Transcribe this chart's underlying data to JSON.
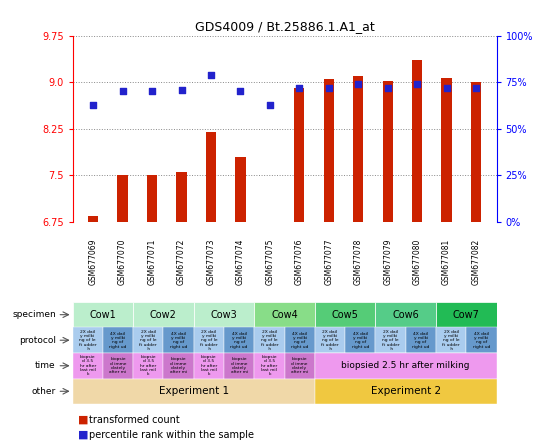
{
  "title": "GDS4009 / Bt.25886.1.A1_at",
  "samples": [
    "GSM677069",
    "GSM677070",
    "GSM677071",
    "GSM677072",
    "GSM677073",
    "GSM677074",
    "GSM677075",
    "GSM677076",
    "GSM677077",
    "GSM677078",
    "GSM677079",
    "GSM677080",
    "GSM677081",
    "GSM677082"
  ],
  "transformed_count": [
    6.85,
    7.5,
    7.5,
    7.55,
    8.2,
    7.8,
    6.7,
    8.9,
    9.05,
    9.1,
    9.02,
    9.35,
    9.07,
    9.0
  ],
  "percentile_rank": [
    63,
    70,
    70,
    71,
    79,
    70,
    63,
    72,
    72,
    74,
    72,
    74,
    72,
    72
  ],
  "ylim_left": [
    6.75,
    9.75
  ],
  "ylim_right": [
    0,
    100
  ],
  "yticks_left": [
    6.75,
    7.5,
    8.25,
    9.0,
    9.75
  ],
  "yticks_right": [
    0,
    25,
    50,
    75,
    100
  ],
  "ytick_labels_right": [
    "0%",
    "25%",
    "50%",
    "75%",
    "100%"
  ],
  "bar_color": "#cc2200",
  "dot_color": "#2222cc",
  "specimen_labels": [
    "Cow1",
    "Cow2",
    "Cow3",
    "Cow4",
    "Cow5",
    "Cow6",
    "Cow7"
  ],
  "specimen_spans": [
    [
      0,
      2
    ],
    [
      2,
      4
    ],
    [
      4,
      6
    ],
    [
      6,
      8
    ],
    [
      8,
      10
    ],
    [
      10,
      12
    ],
    [
      12,
      14
    ]
  ],
  "specimen_colors": [
    "#bbeecc",
    "#bbeecc",
    "#bbeecc",
    "#88dd88",
    "#55cc77",
    "#55cc88",
    "#22bb55"
  ],
  "time_span2_text": "biopsied 2.5 hr after milking",
  "other_exp1_text": "Experiment 1",
  "other_exp2_text": "Experiment 2",
  "other_exp1_color": "#f0d8a8",
  "other_exp2_color": "#f0c840",
  "protocol_color_odd": "#aaccee",
  "protocol_color_even": "#6699cc",
  "time_color_odd": "#ee99ee",
  "time_color_even": "#cc77cc",
  "time_color_span2": "#ee99ee",
  "row_labels": [
    "specimen",
    "protocol",
    "time",
    "other"
  ],
  "background_color": "#ffffff",
  "grid_color": "#888888",
  "xticklabel_bg": "#cccccc"
}
